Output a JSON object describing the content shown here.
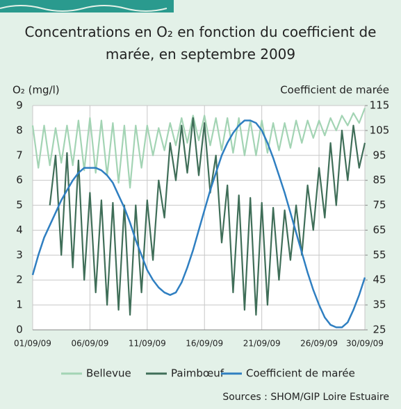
{
  "chart_data": {
    "type": "line",
    "title": "Concentrations en O₂ en fonction du coefficient de marée, en septembre 2009",
    "y_label": "O₂ (mg/l)",
    "y2_label": "Coefficient de marée",
    "source": "Sources : SHOM/GIP Loire Estuaire",
    "x": [
      1,
      1.5,
      2,
      2.5,
      3,
      3.5,
      4,
      4.5,
      5,
      5.5,
      6,
      6.5,
      7,
      7.5,
      8,
      8.5,
      9,
      9.5,
      10,
      10.5,
      11,
      11.5,
      12,
      12.5,
      13,
      13.5,
      14,
      14.5,
      15,
      15.5,
      16,
      16.5,
      17,
      17.5,
      18,
      18.5,
      19,
      19.5,
      20,
      20.5,
      21,
      21.5,
      22,
      22.5,
      23,
      23.5,
      24,
      24.5,
      25,
      25.5,
      26,
      26.5,
      27,
      27.5,
      28,
      28.5,
      29,
      29.5,
      30
    ],
    "xlim": [
      1,
      30
    ],
    "xticks": [
      {
        "value": 1,
        "label": "01/09/09"
      },
      {
        "value": 6,
        "label": "06/09/09"
      },
      {
        "value": 11,
        "label": "11/09/09"
      },
      {
        "value": 16,
        "label": "16/09/09"
      },
      {
        "value": 21,
        "label": "21/09/09"
      },
      {
        "value": 26,
        "label": "26/09/09"
      },
      {
        "value": 30,
        "label": "30/09/09"
      }
    ],
    "ylim": [
      0,
      9
    ],
    "yticks": [
      0,
      1,
      2,
      3,
      4,
      5,
      6,
      7,
      8,
      9
    ],
    "y2lim": [
      25,
      115
    ],
    "y2ticks": [
      25,
      35,
      45,
      55,
      65,
      75,
      85,
      95,
      105,
      115
    ],
    "grid": true,
    "series": [
      {
        "name": "Bellevue",
        "color": "#a3d4b4",
        "values": [
          8.2,
          6.5,
          8.2,
          6.6,
          8.1,
          6.7,
          8.2,
          6.6,
          8.4,
          6.4,
          8.5,
          6.3,
          8.4,
          6.2,
          8.3,
          5.9,
          8.2,
          5.7,
          8.2,
          6.5,
          8.2,
          7.0,
          8.1,
          7.2,
          8.3,
          7.4,
          8.5,
          7.5,
          8.6,
          7.6,
          8.6,
          7.4,
          8.5,
          7.2,
          8.5,
          7.1,
          8.5,
          7.0,
          8.4,
          7.0,
          8.4,
          7.1,
          8.3,
          7.2,
          8.3,
          7.3,
          8.4,
          7.5,
          8.4,
          7.7,
          8.4,
          7.8,
          8.5,
          8.0,
          8.6,
          8.2,
          8.7,
          8.3,
          8.9
        ]
      },
      {
        "name": "Paimbœuf",
        "color": "#3f6e58",
        "values": [
          null,
          null,
          null,
          5.0,
          7.0,
          3.0,
          7.1,
          2.5,
          6.8,
          2.0,
          5.5,
          1.5,
          5.2,
          1.0,
          5.1,
          0.8,
          5.0,
          0.6,
          5.0,
          1.5,
          5.2,
          2.8,
          6.0,
          4.5,
          7.5,
          6.0,
          8.2,
          6.3,
          8.5,
          6.2,
          8.3,
          5.5,
          7.0,
          3.5,
          5.8,
          1.5,
          5.4,
          0.8,
          5.3,
          0.6,
          5.1,
          1.0,
          4.9,
          2.0,
          4.8,
          2.8,
          5.0,
          3.0,
          5.8,
          4.0,
          6.5,
          4.5,
          7.5,
          5.0,
          8.0,
          6.0,
          8.2,
          6.5,
          7.5
        ]
      },
      {
        "name": "Coefficient de marée",
        "color": "#2f7fc1",
        "axis": "y2",
        "values": [
          47,
          55,
          62,
          67,
          72,
          77,
          81,
          85,
          88,
          90,
          90,
          90,
          89,
          87,
          84,
          79,
          74,
          68,
          61,
          55,
          49,
          45,
          42,
          40,
          39,
          40,
          44,
          50,
          57,
          65,
          73,
          81,
          88,
          95,
          100,
          104,
          107,
          109,
          109,
          108,
          105,
          100,
          94,
          87,
          80,
          72,
          64,
          56,
          48,
          41,
          35,
          30,
          27,
          26,
          26,
          28,
          33,
          39,
          46
        ]
      }
    ]
  }
}
